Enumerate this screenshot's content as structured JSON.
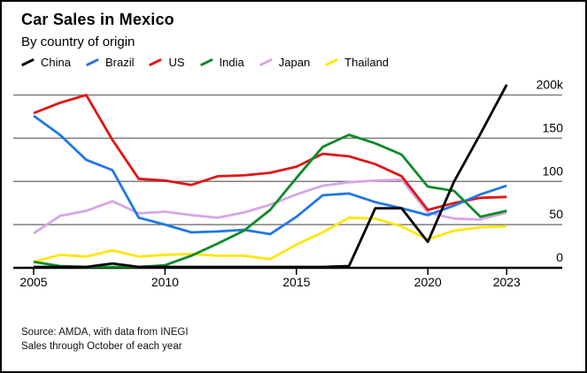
{
  "header": {
    "title": "Car Sales in Mexico",
    "subtitle": "By country of origin"
  },
  "footer": {
    "source": "Source: AMDA, with data from INEGI",
    "note": "Sales through October of each year"
  },
  "colors": {
    "background": "#ffffff",
    "grid": "#7d7d7d",
    "axis": "#000000",
    "text": "#000000"
  },
  "chart_data": {
    "type": "line",
    "title": "Car Sales in Mexico",
    "subtitle": "By country of origin",
    "unit": "cars, thousands",
    "x": [
      2005,
      2006,
      2007,
      2008,
      2009,
      2010,
      2011,
      2012,
      2013,
      2014,
      2015,
      2016,
      2017,
      2018,
      2019,
      2020,
      2021,
      2022,
      2023
    ],
    "xticks": [
      2005,
      2010,
      2015,
      2020,
      2023
    ],
    "yticks": [
      {
        "label": "0",
        "value": 0
      },
      {
        "label": "50",
        "value": 50
      },
      {
        "label": "100",
        "value": 100
      },
      {
        "label": "150",
        "value": 150
      },
      {
        "label": "200k",
        "value": 200
      }
    ],
    "ylim": [
      0,
      215
    ],
    "grid": true,
    "legend_position": "top-left",
    "series": [
      {
        "name": "China",
        "color": "#000000",
        "values": [
          1,
          1,
          1,
          5,
          1,
          1,
          1,
          1,
          1,
          1,
          1,
          1,
          2,
          69,
          69,
          30,
          100,
          155,
          212
        ]
      },
      {
        "name": "Brazil",
        "color": "#2077e4",
        "values": [
          176,
          154,
          125,
          113,
          58,
          50,
          41,
          42,
          44,
          39,
          59,
          84,
          86,
          76,
          69,
          61,
          72,
          85,
          95
        ]
      },
      {
        "name": "US",
        "color": "#e01616",
        "values": [
          179,
          191,
          200,
          148,
          103,
          101,
          96,
          106,
          107,
          110,
          117,
          132,
          129,
          120,
          106,
          67,
          75,
          81,
          82
        ]
      },
      {
        "name": "India",
        "color": "#0f8a28",
        "values": [
          7,
          2,
          1,
          1,
          1,
          3,
          14,
          28,
          43,
          67,
          104,
          140,
          154,
          144,
          131,
          94,
          89,
          59,
          66
        ]
      },
      {
        "name": "Japan",
        "color": "#d7a6e6",
        "values": [
          40,
          60,
          66,
          77,
          63,
          65,
          61,
          58,
          64,
          73,
          85,
          95,
          99,
          101,
          102,
          64,
          57,
          56,
          64
        ]
      },
      {
        "name": "Thailand",
        "color": "#ffe60a",
        "values": [
          7,
          15,
          13,
          20,
          13,
          15,
          16,
          14,
          14,
          10,
          27,
          41,
          58,
          57,
          48,
          33,
          43,
          47,
          48
        ]
      }
    ]
  }
}
